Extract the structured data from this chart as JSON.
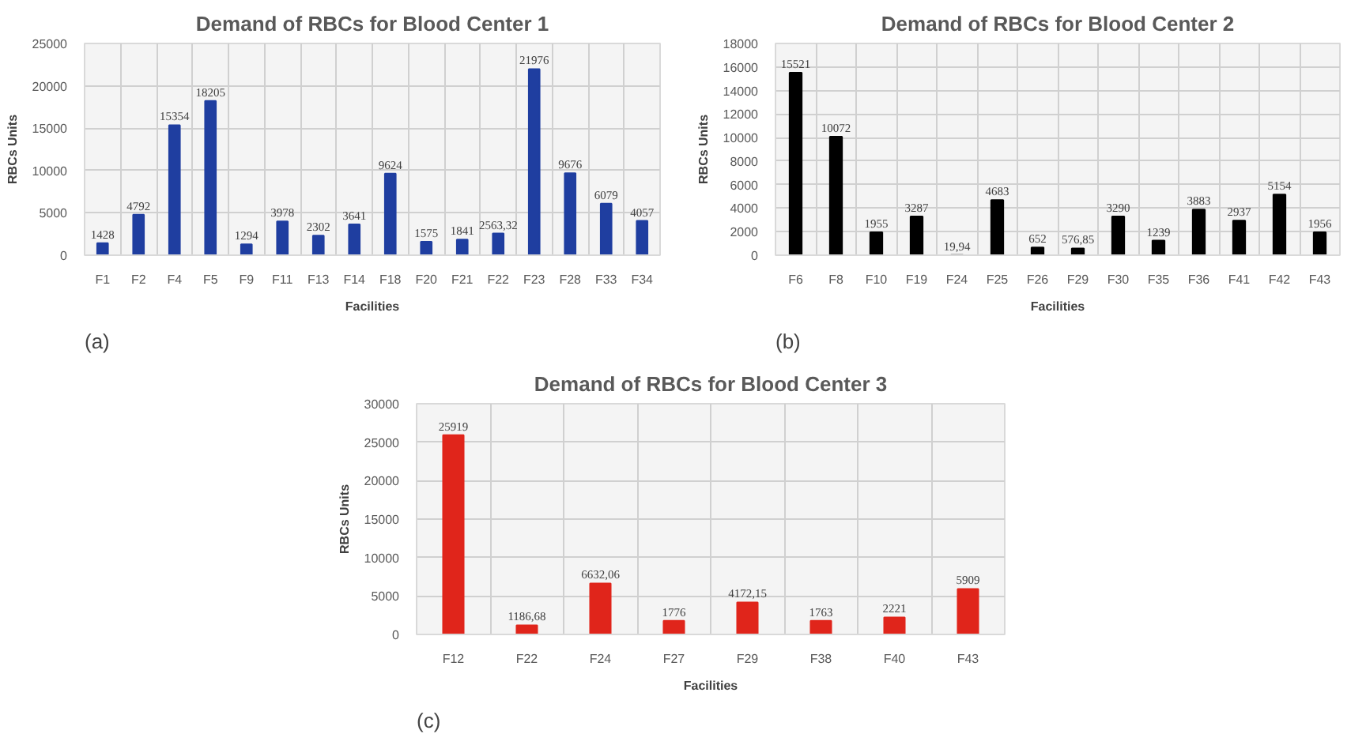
{
  "chart_data": [
    {
      "type": "bar",
      "title": "Demand of RBCs for Blood Center 1",
      "xlabel": "Facilities",
      "ylabel": "RBCs Units",
      "annotations": [
        "(a)"
      ],
      "categories": [
        "F1",
        "F2",
        "F4",
        "F5",
        "F9",
        "F11",
        "F13",
        "F14",
        "F18",
        "F20",
        "F21",
        "F22",
        "F23",
        "F28",
        "F33",
        "F34"
      ],
      "values": [
        1428,
        4792,
        15354,
        18205,
        1294,
        3978,
        2302,
        3641,
        9624,
        1575,
        1841,
        2563.32,
        21976,
        9676,
        6079,
        4057
      ],
      "value_labels": [
        "1428",
        "4792",
        "15354",
        "18205",
        "1294",
        "3978",
        "2302",
        "3641",
        "9624",
        "1575",
        "1841",
        "2563,32",
        "21976",
        "9676",
        "6079",
        "4057"
      ],
      "color": "#1f3ea0",
      "ylim": [
        0,
        25000
      ],
      "yticks": [
        0,
        5000,
        10000,
        15000,
        20000,
        25000
      ],
      "grid": true
    },
    {
      "type": "bar",
      "title": "Demand of RBCs for Blood Center 2",
      "xlabel": "Facilities",
      "ylabel": "RBCs Units",
      "annotations": [
        "(b)"
      ],
      "categories": [
        "F6",
        "F8",
        "F10",
        "F19",
        "F24",
        "F25",
        "F26",
        "F29",
        "F30",
        "F35",
        "F36",
        "F41",
        "F42",
        "F43"
      ],
      "values": [
        15521,
        10072,
        1955,
        3287,
        19.94,
        4683,
        652,
        576.85,
        3290,
        1239,
        3883,
        2937,
        5154,
        1956
      ],
      "value_labels": [
        "15521",
        "10072",
        "1955",
        "3287",
        "19,94",
        "4683",
        "652",
        "576,85",
        "3290",
        "1239",
        "3883",
        "2937",
        "5154",
        "1956"
      ],
      "color": "#000000",
      "ylim": [
        0,
        18000
      ],
      "yticks": [
        0,
        2000,
        4000,
        6000,
        8000,
        10000,
        12000,
        14000,
        16000,
        18000
      ],
      "grid": true
    },
    {
      "type": "bar",
      "title": "Demand of RBCs for Blood Center 3",
      "xlabel": "Facilities",
      "ylabel": "RBCs Units",
      "annotations": [
        "(c)"
      ],
      "categories": [
        "F12",
        "F22",
        "F24",
        "F27",
        "F29",
        "F38",
        "F40",
        "F43"
      ],
      "values": [
        25919,
        1186.68,
        6632.06,
        1776,
        4172.15,
        1763,
        2221,
        5909
      ],
      "value_labels": [
        "25919",
        "1186,68",
        "6632,06",
        "1776",
        "4172,15",
        "1763",
        "2221",
        "5909"
      ],
      "color": "#e0251b",
      "ylim": [
        0,
        30000
      ],
      "yticks": [
        0,
        5000,
        10000,
        15000,
        20000,
        25000,
        30000
      ],
      "grid": true
    }
  ]
}
